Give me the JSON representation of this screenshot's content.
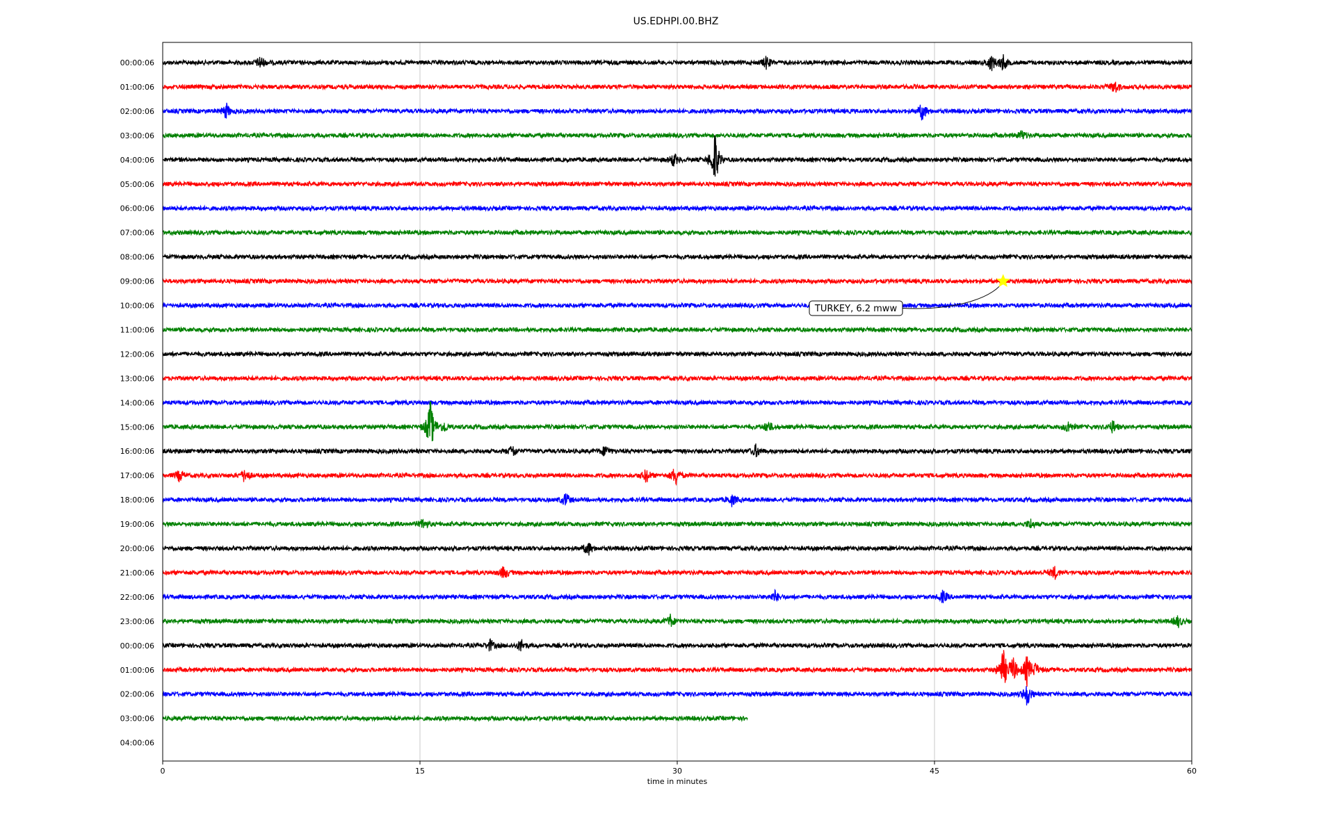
{
  "chart_data": {
    "type": "line",
    "title": "US.EDHPI.00.BHZ",
    "xlabel": "time in minutes",
    "xlim": [
      0,
      60
    ],
    "xticks": [
      "0",
      "15",
      "30",
      "45",
      "60"
    ],
    "grid_x": true,
    "row_labels": [
      "00:00:06",
      "01:00:06",
      "02:00:06",
      "03:00:06",
      "04:00:06",
      "05:00:06",
      "06:00:06",
      "07:00:06",
      "08:00:06",
      "09:00:06",
      "10:00:06",
      "11:00:06",
      "12:00:06",
      "13:00:06",
      "14:00:06",
      "15:00:06",
      "16:00:06",
      "17:00:06",
      "18:00:06",
      "19:00:06",
      "20:00:06",
      "21:00:06",
      "22:00:06",
      "23:00:06",
      "00:00:06",
      "01:00:06",
      "02:00:06",
      "03:00:06",
      "04:00:06"
    ],
    "colors": [
      "#000000",
      "#ff0000",
      "#0000ff",
      "#008000"
    ],
    "trace_rows": 28,
    "last_trace_end_minute": 34.1,
    "events": [
      {
        "row": 0,
        "minute": 5.7,
        "amp": 1.4
      },
      {
        "row": 0,
        "minute": 35.2,
        "amp": 1.3
      },
      {
        "row": 0,
        "minute": 48.3,
        "amp": 1.8
      },
      {
        "row": 0,
        "minute": 49.0,
        "amp": 1.7
      },
      {
        "row": 1,
        "minute": 55.5,
        "amp": 1.5
      },
      {
        "row": 2,
        "minute": 3.7,
        "amp": 1.6
      },
      {
        "row": 2,
        "minute": 44.3,
        "amp": 2.0
      },
      {
        "row": 3,
        "minute": 50.1,
        "amp": 1.0
      },
      {
        "row": 4,
        "minute": 29.8,
        "amp": 1.4
      },
      {
        "row": 4,
        "minute": 32.2,
        "amp": 6.0
      },
      {
        "row": 15,
        "minute": 15.6,
        "amp": 6.0
      },
      {
        "row": 15,
        "minute": 16.4,
        "amp": 1.2
      },
      {
        "row": 15,
        "minute": 35.3,
        "amp": 1.2
      },
      {
        "row": 15,
        "minute": 52.8,
        "amp": 1.3
      },
      {
        "row": 15,
        "minute": 55.4,
        "amp": 1.3
      },
      {
        "row": 16,
        "minute": 20.4,
        "amp": 1.3
      },
      {
        "row": 16,
        "minute": 25.8,
        "amp": 1.2
      },
      {
        "row": 16,
        "minute": 34.6,
        "amp": 1.3
      },
      {
        "row": 17,
        "minute": 1.0,
        "amp": 1.3
      },
      {
        "row": 17,
        "minute": 4.8,
        "amp": 1.6
      },
      {
        "row": 17,
        "minute": 28.2,
        "amp": 1.5
      },
      {
        "row": 17,
        "minute": 29.9,
        "amp": 2.2
      },
      {
        "row": 18,
        "minute": 23.5,
        "amp": 1.4
      },
      {
        "row": 18,
        "minute": 33.2,
        "amp": 1.2
      },
      {
        "row": 19,
        "minute": 15.2,
        "amp": 1.2
      },
      {
        "row": 19,
        "minute": 50.6,
        "amp": 1.0
      },
      {
        "row": 20,
        "minute": 24.8,
        "amp": 1.5
      },
      {
        "row": 21,
        "minute": 19.9,
        "amp": 1.4
      },
      {
        "row": 21,
        "minute": 52.0,
        "amp": 1.3
      },
      {
        "row": 22,
        "minute": 35.7,
        "amp": 1.2
      },
      {
        "row": 22,
        "minute": 45.5,
        "amp": 1.3
      },
      {
        "row": 23,
        "minute": 29.6,
        "amp": 1.3
      },
      {
        "row": 23,
        "minute": 59.2,
        "amp": 1.2
      },
      {
        "row": 24,
        "minute": 19.1,
        "amp": 1.2
      },
      {
        "row": 24,
        "minute": 20.9,
        "amp": 1.3
      },
      {
        "row": 25,
        "minute": 49.0,
        "amp": 4.5
      },
      {
        "row": 25,
        "minute": 49.6,
        "amp": 2.6
      },
      {
        "row": 25,
        "minute": 50.4,
        "amp": 3.2
      },
      {
        "row": 25,
        "minute": 50.9,
        "amp": 1.2
      },
      {
        "row": 26,
        "minute": 50.4,
        "amp": 2.5
      }
    ],
    "annotation": {
      "text": "TURKEY, 6.2 mww",
      "row": 9,
      "minute": 49.0
    }
  }
}
